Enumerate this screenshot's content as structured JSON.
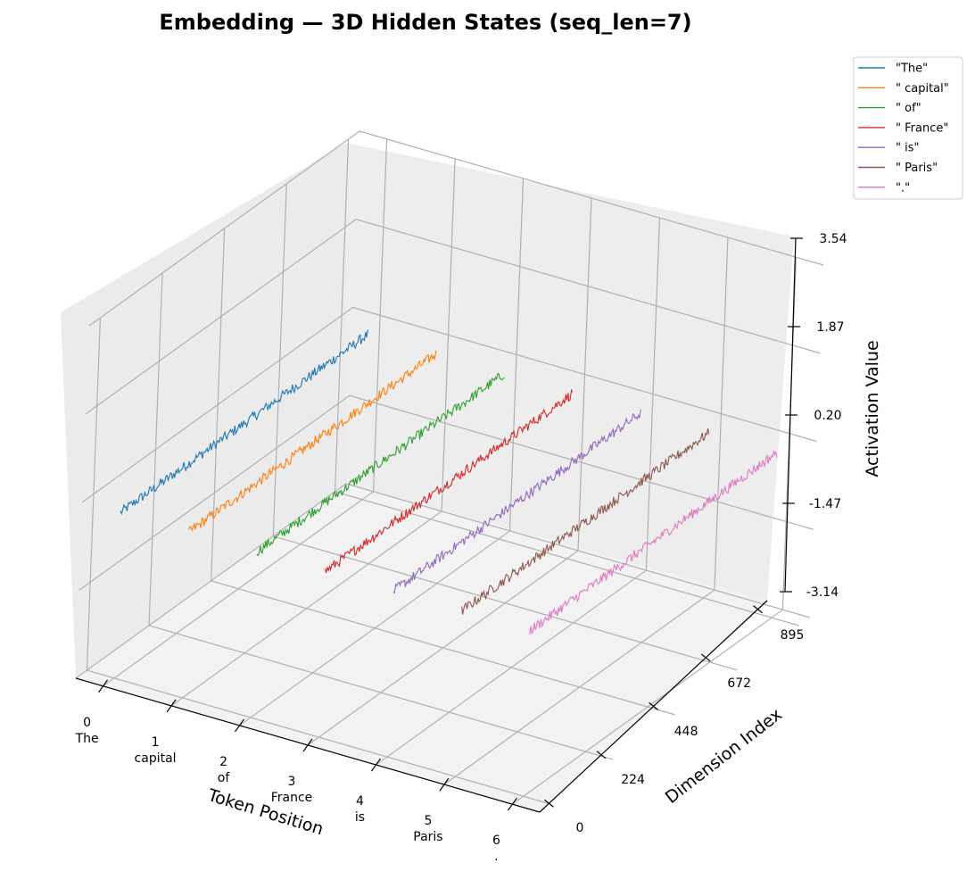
{
  "chart_data": {
    "type": "line",
    "projection": "3d",
    "title": "Embedding — 3D Hidden States (seq_len=7)",
    "xlabel": "Token Position",
    "ylabel": "Dimension Index",
    "zlabel": "Activation Value",
    "x_ticks": [
      {
        "value": 0,
        "token": "The"
      },
      {
        "value": 1,
        "token": "capital"
      },
      {
        "value": 2,
        "token": "of"
      },
      {
        "value": 3,
        "token": "France"
      },
      {
        "value": 4,
        "token": "is"
      },
      {
        "value": 5,
        "token": "Paris"
      },
      {
        "value": 6,
        "token": "."
      }
    ],
    "y_ticks": [
      "0",
      "224",
      "448",
      "672",
      "895"
    ],
    "y_range": [
      0,
      895
    ],
    "z_ticks": [
      "-3.14",
      "-1.47",
      "0.20",
      "1.87",
      "3.54"
    ],
    "z_range": [
      -3.14,
      3.54
    ],
    "grid": true,
    "legend_position": "top-right",
    "series": [
      {
        "name": "\"The\"",
        "token_position": 0,
        "dim_range": [
          0,
          895
        ],
        "activation_range": [
          -0.1,
          0.1
        ],
        "color": "#1f77b4"
      },
      {
        "name": "\" capital\"",
        "token_position": 1,
        "dim_range": [
          0,
          895
        ],
        "activation_range": [
          -0.1,
          0.1
        ],
        "color": "#ff7f0e"
      },
      {
        "name": "\" of\"",
        "token_position": 2,
        "dim_range": [
          0,
          895
        ],
        "activation_range": [
          -0.1,
          0.1
        ],
        "color": "#2ca02c"
      },
      {
        "name": "\" France\"",
        "token_position": 3,
        "dim_range": [
          0,
          895
        ],
        "activation_range": [
          -0.1,
          0.1
        ],
        "color": "#d62728"
      },
      {
        "name": "\" is\"",
        "token_position": 4,
        "dim_range": [
          0,
          895
        ],
        "activation_range": [
          -0.1,
          0.1
        ],
        "color": "#9467bd"
      },
      {
        "name": "\" Paris\"",
        "token_position": 5,
        "dim_range": [
          0,
          895
        ],
        "activation_range": [
          -0.1,
          0.1
        ],
        "color": "#8c564b"
      },
      {
        "name": "\".\"",
        "token_position": 6,
        "dim_range": [
          0,
          895
        ],
        "activation_range": [
          -0.1,
          0.1
        ],
        "color": "#e377c2"
      }
    ]
  }
}
